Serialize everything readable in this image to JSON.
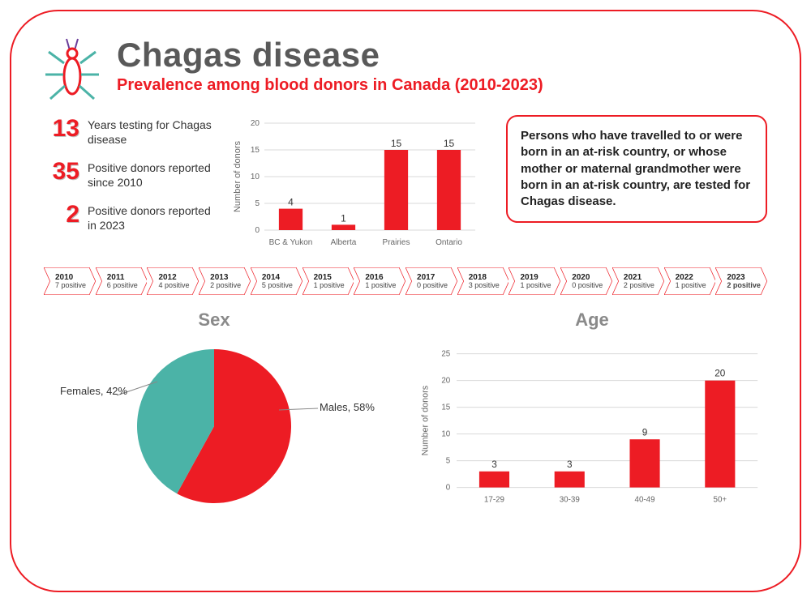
{
  "colors": {
    "accent": "#ed1c24",
    "teal": "#4bb3a7",
    "grey_text": "#595959",
    "grid": "#d9d9d9",
    "bg": "#ffffff"
  },
  "header": {
    "title": "Chagas disease",
    "subtitle": "Prevalence among blood donors in Canada (2010-2023)"
  },
  "stats": [
    {
      "value": "13",
      "label": "Years testing for Chagas disease"
    },
    {
      "value": "35",
      "label": "Positive donors reported since 2010"
    },
    {
      "value": "2",
      "label": "Positive donors reported in 2023"
    }
  ],
  "region_chart": {
    "type": "bar",
    "y_label": "Number of donors",
    "ylim": [
      0,
      20
    ],
    "ytick_step": 5,
    "bar_color": "#ed1c24",
    "categories": [
      "BC & Yukon",
      "Alberta",
      "Prairies",
      "Ontario"
    ],
    "values": [
      4,
      1,
      15,
      15
    ]
  },
  "info_box": "Persons who have travelled to or were born in an at-risk country, or whose mother or maternal grandmother were born in an at-risk country, are tested for Chagas disease.",
  "timeline": [
    {
      "year": "2010",
      "label": "7 positive"
    },
    {
      "year": "2011",
      "label": "6 positive"
    },
    {
      "year": "2012",
      "label": "4 positive"
    },
    {
      "year": "2013",
      "label": "2 positive"
    },
    {
      "year": "2014",
      "label": "5 positive"
    },
    {
      "year": "2015",
      "label": "1 positive"
    },
    {
      "year": "2016",
      "label": "1 positive"
    },
    {
      "year": "2017",
      "label": "0 positive"
    },
    {
      "year": "2018",
      "label": "3 positive"
    },
    {
      "year": "2019",
      "label": "1 positive"
    },
    {
      "year": "2020",
      "label": "0 positive"
    },
    {
      "year": "2021",
      "label": "2 positive"
    },
    {
      "year": "2022",
      "label": "1 positive"
    },
    {
      "year": "2023",
      "label": "2 positive",
      "bold": true
    }
  ],
  "sex_chart": {
    "type": "pie",
    "title": "Sex",
    "slices": [
      {
        "name": "Males",
        "pct": 58,
        "color": "#ed1c24",
        "label": "Males, 58%"
      },
      {
        "name": "Females",
        "pct": 42,
        "color": "#4bb3a7",
        "label": "Females, 42%"
      }
    ]
  },
  "age_chart": {
    "type": "bar",
    "title": "Age",
    "y_label": "Number of donors",
    "ylim": [
      0,
      25
    ],
    "ytick_step": 5,
    "bar_color": "#ed1c24",
    "categories": [
      "17-29",
      "30-39",
      "40-49",
      "50+"
    ],
    "values": [
      3,
      3,
      9,
      20
    ]
  }
}
